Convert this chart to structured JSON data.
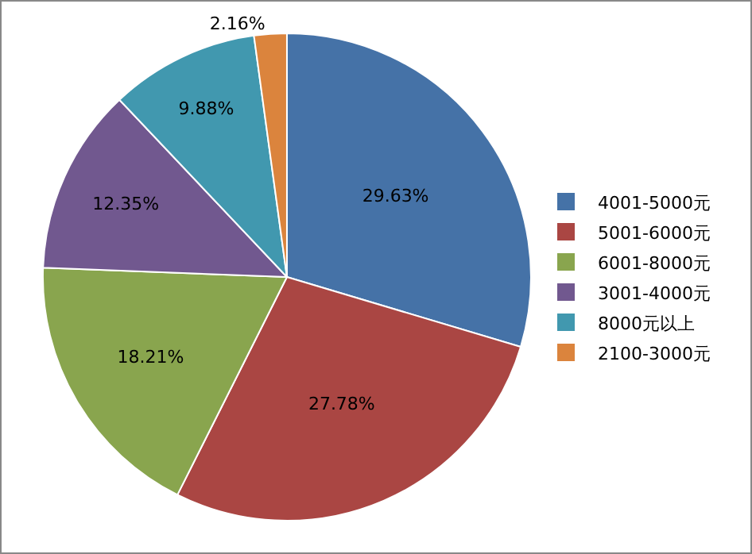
{
  "chart_data": {
    "type": "pie",
    "categories": [
      "4001-5000元",
      "5001-6000元",
      "6001-8000元",
      "3001-4000元",
      "8000元以上",
      "2100-3000元"
    ],
    "values": [
      29.63,
      27.78,
      18.21,
      12.35,
      9.88,
      2.16
    ],
    "value_labels": [
      "29.63%",
      "27.78%",
      "18.21%",
      "12.35%",
      "9.88%",
      "2.16%"
    ],
    "colors": [
      "#4572a7",
      "#aa4643",
      "#89a54e",
      "#71588f",
      "#4198af",
      "#db843d"
    ],
    "legend": "right"
  }
}
